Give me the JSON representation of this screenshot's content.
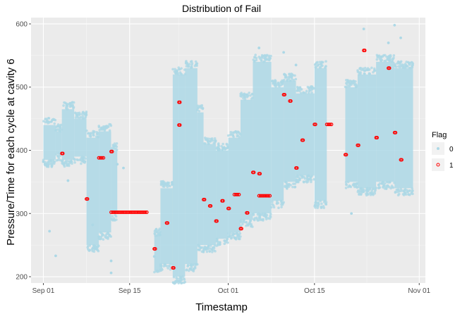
{
  "chart_data": {
    "type": "scatter",
    "title": "Distribution of Fail",
    "xlabel": "Timestamp",
    "ylabel": "Pressure/Time for each cycle at cavity 6",
    "xlim": [
      "2018-08-30",
      "2018-11-02"
    ],
    "ylim": [
      190,
      610
    ],
    "x_ticks": [
      {
        "date": "2018-09-01",
        "label": "Sep 01"
      },
      {
        "date": "2018-09-15",
        "label": "Sep 15"
      },
      {
        "date": "2018-10-01",
        "label": "Oct 01"
      },
      {
        "date": "2018-10-15",
        "label": "Oct 15"
      },
      {
        "date": "2018-11-01",
        "label": "Nov 01"
      }
    ],
    "y_ticks": [
      200,
      300,
      400,
      500,
      600
    ],
    "grid": true,
    "legend": {
      "title": "Flag",
      "placement": "right",
      "entries": [
        {
          "label": "0",
          "color": "#add8e6"
        },
        {
          "label": "1",
          "color": "#ff0000"
        }
      ]
    },
    "series": [
      {
        "name": "0",
        "color": "#add8e6",
        "bands": [
          {
            "start": "2018-09-01",
            "end": "2018-09-03",
            "low": 385,
            "high": 440
          },
          {
            "start": "2018-09-03",
            "end": "2018-09-04",
            "low": 395,
            "high": 430
          },
          {
            "start": "2018-09-04",
            "end": "2018-09-06",
            "low": 385,
            "high": 465
          },
          {
            "start": "2018-09-06",
            "end": "2018-09-08",
            "low": 390,
            "high": 450
          },
          {
            "start": "2018-09-08",
            "end": "2018-09-10",
            "low": 250,
            "high": 420
          },
          {
            "start": "2018-09-10",
            "end": "2018-09-12",
            "low": 270,
            "high": 430
          },
          {
            "start": "2018-09-12",
            "end": "2018-09-13",
            "low": 300,
            "high": 400
          },
          {
            "start": "2018-09-19",
            "end": "2018-09-20",
            "low": 210,
            "high": 265
          },
          {
            "start": "2018-09-20",
            "end": "2018-09-22",
            "low": 220,
            "high": 340
          },
          {
            "start": "2018-09-22",
            "end": "2018-09-24",
            "low": 200,
            "high": 520
          },
          {
            "start": "2018-09-24",
            "end": "2018-09-26",
            "low": 220,
            "high": 530
          },
          {
            "start": "2018-09-26",
            "end": "2018-09-27",
            "low": 250,
            "high": 460
          },
          {
            "start": "2018-09-27",
            "end": "2018-09-29",
            "low": 250,
            "high": 410
          },
          {
            "start": "2018-09-29",
            "end": "2018-10-01",
            "low": 260,
            "high": 400
          },
          {
            "start": "2018-10-01",
            "end": "2018-10-03",
            "low": 270,
            "high": 420
          },
          {
            "start": "2018-10-03",
            "end": "2018-10-05",
            "low": 290,
            "high": 480
          },
          {
            "start": "2018-10-05",
            "end": "2018-10-08",
            "low": 300,
            "high": 540
          },
          {
            "start": "2018-10-08",
            "end": "2018-10-10",
            "low": 320,
            "high": 500
          },
          {
            "start": "2018-10-10",
            "end": "2018-10-12",
            "low": 350,
            "high": 510
          },
          {
            "start": "2018-10-12",
            "end": "2018-10-15",
            "low": 360,
            "high": 490
          },
          {
            "start": "2018-10-15",
            "end": "2018-10-17",
            "low": 320,
            "high": 530
          },
          {
            "start": "2018-10-20",
            "end": "2018-10-22",
            "low": 350,
            "high": 500
          },
          {
            "start": "2018-10-22",
            "end": "2018-10-25",
            "low": 340,
            "high": 520
          },
          {
            "start": "2018-10-25",
            "end": "2018-10-28",
            "low": 350,
            "high": 540
          },
          {
            "start": "2018-10-28",
            "end": "2018-10-31",
            "low": 340,
            "high": 530
          }
        ],
        "points": [
          {
            "x": "2018-09-01",
            "y": 382
          },
          {
            "x": "2018-09-02",
            "y": 272
          },
          {
            "x": "2018-09-03",
            "y": 233
          },
          {
            "x": "2018-09-05",
            "y": 352
          },
          {
            "x": "2018-09-09",
            "y": 282
          },
          {
            "x": "2018-09-09",
            "y": 245
          },
          {
            "x": "2018-09-12",
            "y": 225
          },
          {
            "x": "2018-09-12",
            "y": 206
          },
          {
            "x": "2018-09-13",
            "y": 378
          },
          {
            "x": "2018-09-14",
            "y": 372
          },
          {
            "x": "2018-09-19",
            "y": 232
          },
          {
            "x": "2018-10-06",
            "y": 562
          },
          {
            "x": "2018-10-07",
            "y": 545
          },
          {
            "x": "2018-10-10",
            "y": 555
          },
          {
            "x": "2018-10-12",
            "y": 535
          },
          {
            "x": "2018-10-21",
            "y": 300
          },
          {
            "x": "2018-10-23",
            "y": 592
          },
          {
            "x": "2018-10-27",
            "y": 570
          },
          {
            "x": "2018-10-28",
            "y": 598
          },
          {
            "x": "2018-10-29",
            "y": 578
          }
        ]
      },
      {
        "name": "1",
        "color": "#ff0000",
        "runs": [
          {
            "start": "2018-09-10",
            "end": "2018-09-11",
            "y": 388
          },
          {
            "start": "2018-09-12",
            "end": "2018-09-18",
            "y": 302
          },
          {
            "start": "2018-10-02",
            "end": "2018-10-03",
            "y": 330
          },
          {
            "start": "2018-10-06",
            "end": "2018-10-08",
            "y": 328
          },
          {
            "start": "2018-10-17",
            "end": "2018-10-18",
            "y": 441
          }
        ],
        "points": [
          {
            "x": "2018-09-04",
            "y": 395
          },
          {
            "x": "2018-09-08",
            "y": 323
          },
          {
            "x": "2018-09-12",
            "y": 398
          },
          {
            "x": "2018-09-19",
            "y": 244
          },
          {
            "x": "2018-09-21",
            "y": 285
          },
          {
            "x": "2018-09-22",
            "y": 214
          },
          {
            "x": "2018-09-23",
            "y": 476
          },
          {
            "x": "2018-09-23",
            "y": 440
          },
          {
            "x": "2018-09-27",
            "y": 322
          },
          {
            "x": "2018-09-28",
            "y": 312
          },
          {
            "x": "2018-09-29",
            "y": 288
          },
          {
            "x": "2018-09-30",
            "y": 320
          },
          {
            "x": "2018-10-01",
            "y": 308
          },
          {
            "x": "2018-10-03",
            "y": 276
          },
          {
            "x": "2018-10-04",
            "y": 301
          },
          {
            "x": "2018-10-05",
            "y": 365
          },
          {
            "x": "2018-10-06",
            "y": 363
          },
          {
            "x": "2018-10-10",
            "y": 488
          },
          {
            "x": "2018-10-11",
            "y": 478
          },
          {
            "x": "2018-10-12",
            "y": 372
          },
          {
            "x": "2018-10-13",
            "y": 416
          },
          {
            "x": "2018-10-15",
            "y": 441
          },
          {
            "x": "2018-10-20",
            "y": 393
          },
          {
            "x": "2018-10-22",
            "y": 408
          },
          {
            "x": "2018-10-23",
            "y": 558
          },
          {
            "x": "2018-10-25",
            "y": 420
          },
          {
            "x": "2018-10-27",
            "y": 530
          },
          {
            "x": "2018-10-28",
            "y": 428
          },
          {
            "x": "2018-10-29",
            "y": 385
          }
        ]
      }
    ]
  }
}
